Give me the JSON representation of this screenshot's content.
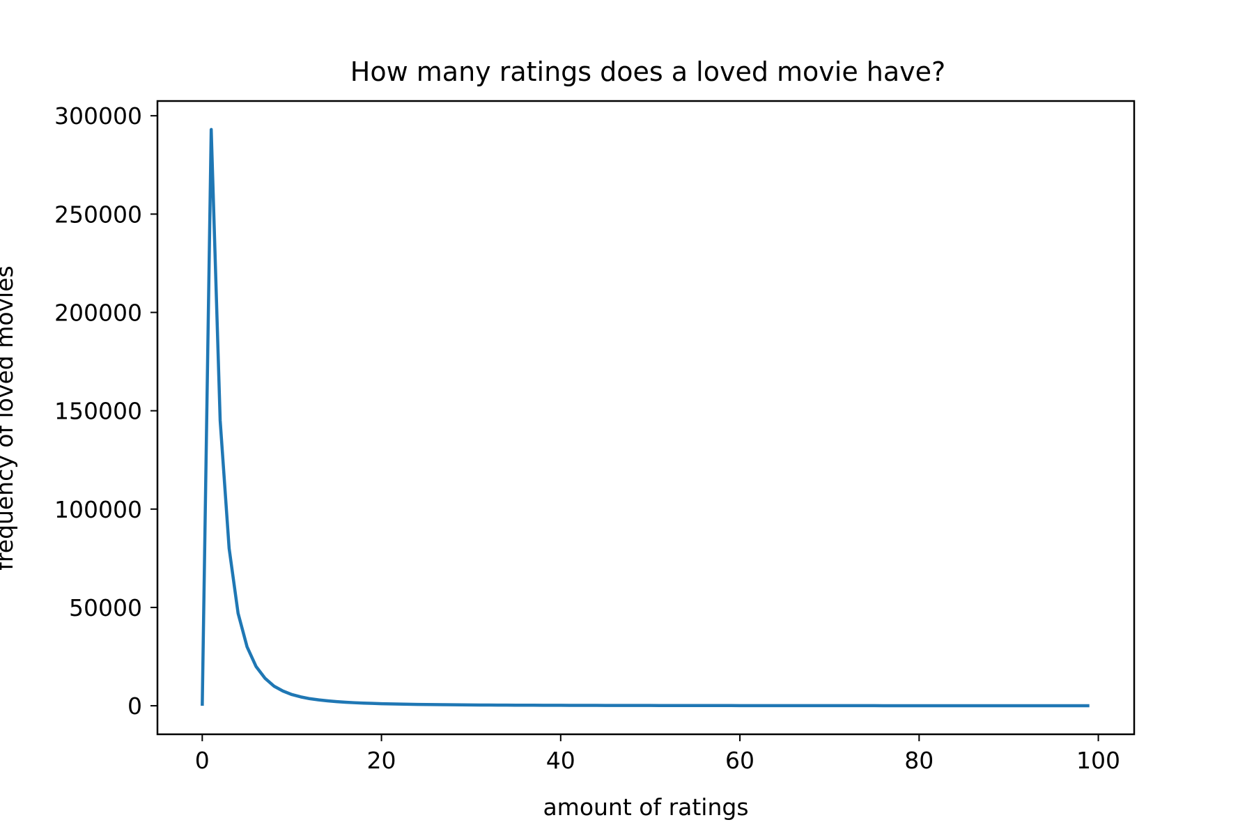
{
  "chart_data": {
    "type": "line",
    "title": "How many ratings does a loved movie have?",
    "xlabel": "amount of ratings",
    "ylabel": "frequency of loved movies",
    "xlim": [
      -5,
      104
    ],
    "ylim": [
      -14500,
      307500
    ],
    "xticks": [
      0,
      20,
      40,
      60,
      80,
      100
    ],
    "xtick_labels": [
      "0",
      "20",
      "40",
      "60",
      "80",
      "100"
    ],
    "yticks": [
      0,
      50000,
      100000,
      150000,
      200000,
      250000,
      300000
    ],
    "ytick_labels": [
      "0",
      "50000",
      "100000",
      "150000",
      "200000",
      "250000",
      "300000"
    ],
    "grid": false,
    "series": [
      {
        "color": "#1f77b4",
        "x": [
          0,
          1,
          2,
          3,
          4,
          5,
          6,
          7,
          8,
          9,
          10,
          11,
          12,
          13,
          14,
          15,
          16,
          17,
          18,
          19,
          20,
          21,
          22,
          23,
          24,
          25,
          26,
          27,
          28,
          29,
          30,
          31,
          32,
          33,
          34,
          35,
          36,
          37,
          38,
          39,
          40,
          41,
          42,
          43,
          44,
          45,
          46,
          47,
          48,
          49,
          50,
          51,
          52,
          53,
          54,
          55,
          56,
          57,
          58,
          59,
          60,
          61,
          62,
          63,
          64,
          65,
          66,
          67,
          68,
          69,
          70,
          71,
          72,
          73,
          74,
          75,
          76,
          77,
          78,
          79,
          80,
          81,
          82,
          83,
          84,
          85,
          86,
          87,
          88,
          89,
          90,
          91,
          92,
          93,
          94,
          95,
          96,
          97,
          98,
          99
        ],
        "y": [
          0,
          293000,
          145000,
          80000,
          47000,
          30000,
          20000,
          14000,
          10000,
          7500,
          5700,
          4500,
          3600,
          3000,
          2500,
          2100,
          1800,
          1550,
          1350,
          1200,
          1050,
          950,
          850,
          770,
          700,
          640,
          590,
          540,
          500,
          460,
          430,
          400,
          370,
          345,
          320,
          300,
          285,
          270,
          255,
          240,
          228,
          216,
          205,
          195,
          185,
          176,
          168,
          160,
          152,
          145,
          138,
          132,
          126,
          120,
          115,
          110,
          105,
          100,
          96,
          92,
          88,
          84,
          80,
          77,
          74,
          71,
          68,
          65,
          62,
          60,
          58,
          56,
          54,
          52,
          50,
          48,
          46,
          44,
          43,
          41,
          40,
          39,
          38,
          36,
          35,
          34,
          33,
          32,
          31,
          30,
          29,
          28,
          27,
          26,
          25,
          24,
          24,
          23,
          22,
          22
        ]
      }
    ]
  }
}
